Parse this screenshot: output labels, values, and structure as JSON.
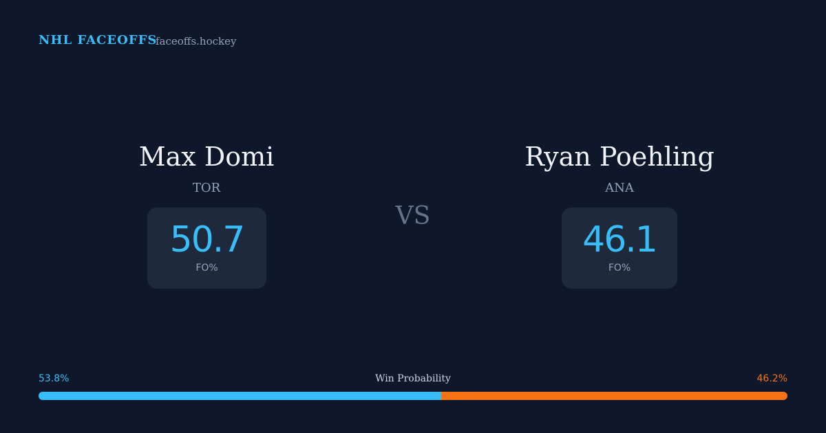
{
  "header": {
    "title": "NHL FACEOFFS",
    "site": "faceoffs.hockey"
  },
  "players": [
    {
      "name": "Max Domi",
      "team": "TOR",
      "fo_pct": 50.7,
      "fo_label": "FO%"
    },
    {
      "name": "Ryan Poehling",
      "team": "ANA",
      "fo_pct": 46.1,
      "fo_label": "FO%"
    }
  ],
  "vs": "VS",
  "win_probability": {
    "label": "Win Probability",
    "values": [
      53.8,
      46.2
    ],
    "value_labels": [
      "53.8%",
      "46.2%"
    ],
    "colors": [
      "#38bdf8",
      "#f97316"
    ]
  }
}
